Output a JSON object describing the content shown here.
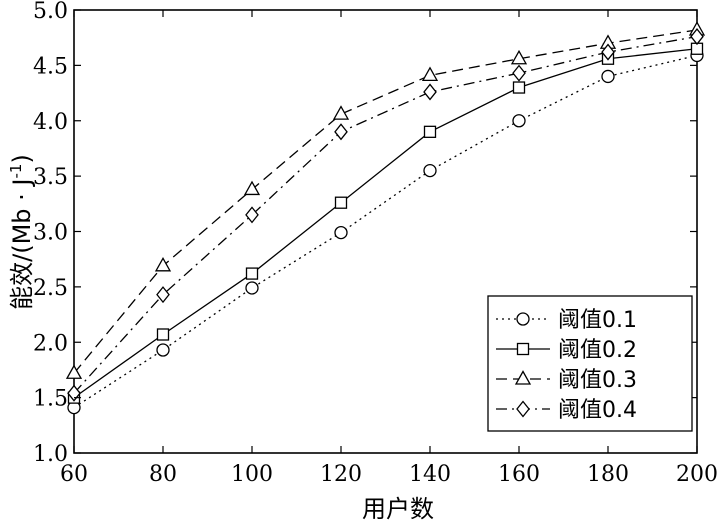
{
  "chart_data": {
    "type": "line",
    "xlabel": "用户数",
    "ylabel": "能效/(Mb · J",
    "ylabel_sup": "-1",
    "ylabel_close": ")",
    "xlim": [
      60,
      200
    ],
    "ylim": [
      1.0,
      5.0
    ],
    "x": [
      60,
      80,
      100,
      120,
      140,
      160,
      180,
      200
    ],
    "x_ticks": [
      "60",
      "80",
      "100",
      "120",
      "140",
      "160",
      "180",
      "200"
    ],
    "y_ticks": [
      "1.0",
      "1.5",
      "2.0",
      "2.5",
      "3.0",
      "3.5",
      "4.0",
      "4.5",
      "5.0"
    ],
    "grid": false,
    "legend_position": "lower-right",
    "series": [
      {
        "name": "阈值0.1",
        "marker": "circle",
        "dash": "dotted",
        "values": [
          1.41,
          1.93,
          2.49,
          2.99,
          3.55,
          4.0,
          4.4,
          4.59
        ]
      },
      {
        "name": "阈值0.2",
        "marker": "square",
        "dash": "solid",
        "values": [
          1.5,
          2.07,
          2.62,
          3.26,
          3.9,
          4.3,
          4.56,
          4.65
        ]
      },
      {
        "name": "阈值0.3",
        "marker": "triangle",
        "dash": "dashed",
        "values": [
          1.72,
          2.69,
          3.38,
          4.06,
          4.41,
          4.56,
          4.7,
          4.82
        ]
      },
      {
        "name": "阈值0.4",
        "marker": "diamond",
        "dash": "dashdot",
        "values": [
          1.54,
          2.43,
          3.15,
          3.9,
          4.26,
          4.43,
          4.62,
          4.76
        ]
      }
    ]
  }
}
